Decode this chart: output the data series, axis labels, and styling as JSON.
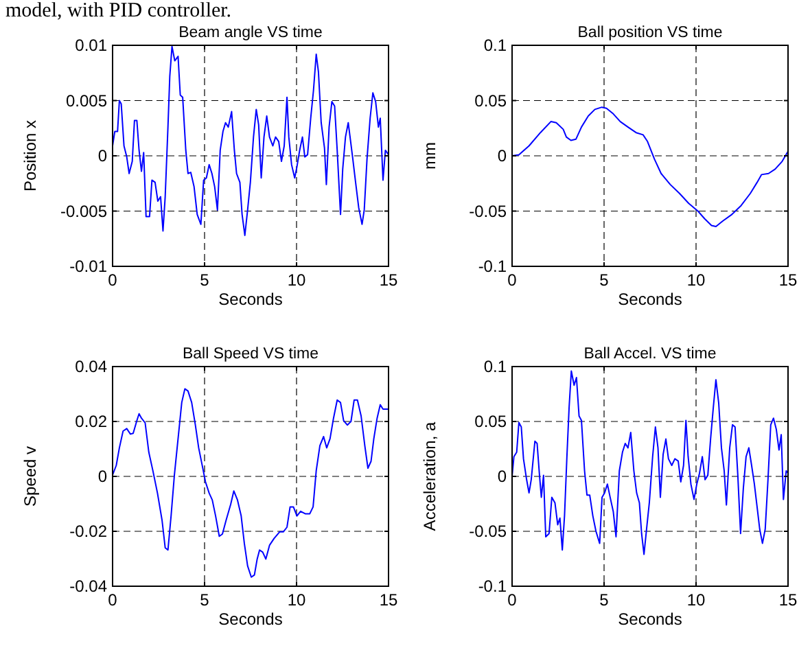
{
  "chart_data": [
    {
      "type": "line",
      "title": "Beam angle VS time",
      "xlabel": "Seconds",
      "ylabel": "Position x",
      "annotations": [
        "model, with PID controller."
      ],
      "xlim": [
        0,
        15
      ],
      "ylim": [
        -0.01,
        0.01
      ],
      "xticks": [
        0,
        5,
        10,
        15
      ],
      "yticks": [
        -0.01,
        -0.005,
        0,
        0.005,
        0.01
      ],
      "grid": true,
      "series": [
        {
          "color": "#0000ff",
          "x": [
            0,
            0.12,
            0.27,
            0.37,
            0.47,
            0.62,
            0.77,
            0.9,
            1.07,
            1.19,
            1.32,
            1.44,
            1.57,
            1.69,
            1.82,
            2.01,
            2.14,
            2.31,
            2.46,
            2.61,
            2.74,
            2.86,
            3.01,
            3.11,
            3.23,
            3.38,
            3.56,
            3.68,
            3.81,
            3.98,
            4.1,
            4.25,
            4.43,
            4.6,
            4.8,
            4.95,
            5.1,
            5.25,
            5.4,
            5.55,
            5.7,
            5.85,
            6.0,
            6.14,
            6.29,
            6.47,
            6.62,
            6.74,
            6.92,
            7.04,
            7.19,
            7.34,
            7.49,
            7.66,
            7.81,
            7.94,
            8.08,
            8.23,
            8.38,
            8.53,
            8.71,
            8.86,
            9.03,
            9.18,
            9.33,
            9.48,
            9.58,
            9.73,
            9.9,
            10.02,
            10.17,
            10.32,
            10.45,
            10.6,
            10.77,
            10.92,
            11.07,
            11.19,
            11.34,
            11.52,
            11.62,
            11.77,
            11.92,
            12.07,
            12.21,
            12.39,
            12.51,
            12.66,
            12.81,
            12.94,
            13.06,
            13.21,
            13.38,
            13.56,
            13.68,
            13.83,
            14.0,
            14.15,
            14.3,
            14.45,
            14.55,
            14.7,
            14.83,
            15
          ],
          "values": [
            0.0009,
            0.0022,
            0.0022,
            0.005,
            0.0047,
            0.0009,
            -0.0001,
            -0.0016,
            -0.0005,
            0.0032,
            0.0032,
            0.0005,
            -0.0014,
            0.0003,
            -0.0055,
            -0.0055,
            -0.0022,
            -0.0024,
            -0.0041,
            -0.0037,
            -0.0068,
            -0.0037,
            0.0026,
            0.0072,
            0.0099,
            0.0086,
            0.009,
            0.0055,
            0.0053,
            0.0005,
            -0.0016,
            -0.0015,
            -0.0028,
            -0.0053,
            -0.0062,
            -0.0022,
            -0.002,
            -0.0008,
            -0.0016,
            -0.0028,
            -0.0049,
            0.0005,
            0.0022,
            0.003,
            0.0026,
            0.004,
            0.0005,
            -0.0016,
            -0.0024,
            -0.0053,
            -0.0072,
            -0.0049,
            -0.0024,
            0.0017,
            0.0042,
            0.0028,
            -0.002,
            0.0017,
            0.0036,
            0.0017,
            0.0009,
            0.0017,
            0.0013,
            -0.0005,
            0.0009,
            0.0053,
            0.0017,
            -0.0008,
            -0.002,
            -0.001,
            0.0005,
            0.0017,
            -0.0001,
            0.0001,
            0.0034,
            0.0059,
            0.0092,
            0.0076,
            0.003,
            0.0007,
            -0.0026,
            0.0026,
            0.0049,
            0.0045,
            0.0005,
            -0.0053,
            -0.0012,
            0.0017,
            0.003,
            0.0013,
            -0.0003,
            -0.0024,
            -0.0047,
            -0.0062,
            -0.0049,
            -0.0003,
            0.0034,
            0.0057,
            0.0049,
            0.0026,
            0.0034,
            -0.0022,
            0.0005,
            0.0001
          ]
        }
      ]
    },
    {
      "type": "line",
      "title": "Ball position VS time",
      "xlabel": "Seconds",
      "ylabel": "mm",
      "xlim": [
        0,
        15
      ],
      "ylim": [
        -0.1,
        0.1
      ],
      "xticks": [
        0,
        5,
        10,
        15
      ],
      "yticks": [
        -0.1,
        -0.05,
        0,
        0.05,
        0.1
      ],
      "grid": true,
      "series": [
        {
          "color": "#0000ff",
          "x": [
            0,
            0.37,
            0.92,
            1.54,
            2.11,
            2.4,
            2.78,
            2.95,
            3.2,
            3.47,
            3.77,
            4.14,
            4.5,
            4.88,
            5.13,
            5.5,
            5.88,
            6.3,
            6.74,
            7.12,
            7.36,
            7.74,
            8.1,
            8.6,
            9.1,
            9.6,
            10.1,
            10.47,
            10.84,
            11.08,
            11.45,
            11.95,
            12.45,
            12.95,
            13.32,
            13.56,
            13.94,
            14.3,
            14.68,
            15
          ],
          "values": [
            0,
            0.001,
            0.009,
            0.021,
            0.031,
            0.03,
            0.024,
            0.017,
            0.014,
            0.015,
            0.026,
            0.036,
            0.042,
            0.044,
            0.043,
            0.038,
            0.031,
            0.026,
            0.021,
            0.019,
            0.013,
            -0.003,
            -0.016,
            -0.026,
            -0.034,
            -0.043,
            -0.05,
            -0.057,
            -0.063,
            -0.064,
            -0.059,
            -0.053,
            -0.045,
            -0.034,
            -0.024,
            -0.017,
            -0.016,
            -0.012,
            -0.005,
            0.004
          ]
        }
      ]
    },
    {
      "type": "line",
      "title": "Ball Speed VS time",
      "xlabel": "Seconds",
      "ylabel": "Speed v",
      "xlim": [
        0,
        15
      ],
      "ylim": [
        -0.04,
        0.04
      ],
      "xticks": [
        0,
        5,
        10,
        15
      ],
      "yticks": [
        -0.04,
        -0.02,
        0,
        0.02,
        0.04
      ],
      "grid": true,
      "series": [
        {
          "color": "#0000ff",
          "x": [
            0,
            0.2,
            0.37,
            0.57,
            0.77,
            0.97,
            1.12,
            1.32,
            1.44,
            1.57,
            1.77,
            1.97,
            2.19,
            2.44,
            2.69,
            2.86,
            3.01,
            3.18,
            3.36,
            3.56,
            3.76,
            3.93,
            4.1,
            4.3,
            4.5,
            4.68,
            4.93,
            5.05,
            5.25,
            5.42,
            5.6,
            5.8,
            5.97,
            6.17,
            6.42,
            6.59,
            6.79,
            6.99,
            7.16,
            7.34,
            7.54,
            7.71,
            7.86,
            7.99,
            8.16,
            8.33,
            8.53,
            8.78,
            9.08,
            9.28,
            9.48,
            9.65,
            9.83,
            10.02,
            10.22,
            10.47,
            10.72,
            10.9,
            11.07,
            11.27,
            11.47,
            11.64,
            11.82,
            12.01,
            12.21,
            12.39,
            12.56,
            12.76,
            12.96,
            13.13,
            13.31,
            13.51,
            13.71,
            13.88,
            14.05,
            14.2,
            14.38,
            14.55,
            14.7,
            14.88,
            15
          ],
          "values": [
            0.0005,
            0.004,
            0.0104,
            0.0165,
            0.0174,
            0.0154,
            0.0157,
            0.0203,
            0.0228,
            0.0212,
            0.0195,
            0.0088,
            0.0021,
            -0.0061,
            -0.016,
            -0.026,
            -0.0268,
            -0.0144,
            0.0005,
            0.0137,
            0.0269,
            0.0319,
            0.0311,
            0.0269,
            0.0187,
            0.0104,
            0.0021,
            -0.002,
            -0.0061,
            -0.0086,
            -0.0144,
            -0.0218,
            -0.021,
            -0.016,
            -0.0102,
            -0.0053,
            -0.0086,
            -0.0144,
            -0.0243,
            -0.0326,
            -0.0367,
            -0.0359,
            -0.0301,
            -0.0268,
            -0.0276,
            -0.0301,
            -0.0251,
            -0.0226,
            -0.0202,
            -0.0202,
            -0.0185,
            -0.0111,
            -0.0111,
            -0.0144,
            -0.0127,
            -0.0136,
            -0.0136,
            -0.0111,
            0.0021,
            0.0112,
            0.0145,
            0.0104,
            0.0137,
            0.0212,
            0.0278,
            0.0269,
            0.0203,
            0.0187,
            0.02,
            0.0278,
            0.0278,
            0.022,
            0.0112,
            0.003,
            0.0055,
            0.0137,
            0.0212,
            0.0261,
            0.0245,
            0.0245,
            0.0245
          ]
        }
      ]
    },
    {
      "type": "line",
      "title": "Ball Accel. VS time",
      "xlabel": "Seconds",
      "ylabel": "Acceleration, a",
      "xlim": [
        0,
        15
      ],
      "ylim": [
        -0.1,
        0.1
      ],
      "xticks": [
        0,
        5,
        10,
        15
      ],
      "yticks": [
        -0.1,
        -0.05,
        0,
        0.05,
        0.1
      ],
      "grid": true,
      "series": [
        {
          "color": "#0000ff",
          "x": [
            0,
            0.1,
            0.25,
            0.37,
            0.5,
            0.62,
            0.79,
            0.92,
            1.04,
            1.24,
            1.36,
            1.49,
            1.59,
            1.71,
            1.83,
            2.01,
            2.16,
            2.33,
            2.48,
            2.6,
            2.73,
            2.85,
            2.98,
            3.1,
            3.22,
            3.37,
            3.5,
            3.64,
            3.77,
            3.94,
            4.07,
            4.22,
            4.39,
            4.56,
            4.76,
            4.89,
            5.03,
            5.18,
            5.33,
            5.5,
            5.65,
            5.83,
            6.0,
            6.15,
            6.3,
            6.45,
            6.62,
            6.77,
            6.92,
            7.04,
            7.17,
            7.31,
            7.46,
            7.64,
            7.79,
            7.93,
            8.06,
            8.21,
            8.36,
            8.5,
            8.68,
            8.85,
            9.03,
            9.17,
            9.32,
            9.45,
            9.57,
            9.72,
            9.89,
            10.04,
            10.19,
            10.34,
            10.49,
            10.64,
            10.79,
            10.94,
            11.08,
            11.23,
            11.38,
            11.53,
            11.65,
            11.83,
            11.98,
            12.12,
            12.27,
            12.42,
            12.57,
            12.72,
            12.87,
            13.02,
            13.17,
            13.32,
            13.46,
            13.61,
            13.76,
            13.91,
            14.06,
            14.21,
            14.36,
            14.51,
            14.63,
            14.75,
            14.9,
            15
          ],
          "values": [
            0,
            0.018,
            0.022,
            0.049,
            0.045,
            0.016,
            -0.003,
            -0.015,
            -0.003,
            0.032,
            0.03,
            0.001,
            -0.019,
            0.001,
            -0.055,
            -0.052,
            -0.019,
            -0.024,
            -0.044,
            -0.038,
            -0.067,
            -0.036,
            0.018,
            0.063,
            0.096,
            0.083,
            0.09,
            0.055,
            0.051,
            0.005,
            -0.017,
            -0.017,
            -0.036,
            -0.05,
            -0.061,
            -0.019,
            -0.015,
            -0.007,
            -0.019,
            -0.032,
            -0.055,
            0.005,
            0.022,
            0.03,
            0.026,
            0.04,
            0.005,
            -0.015,
            -0.024,
            -0.052,
            -0.071,
            -0.048,
            -0.024,
            0.018,
            0.045,
            0.026,
            -0.019,
            0.02,
            0.034,
            0.016,
            0.01,
            0.016,
            0.014,
            -0.005,
            0.01,
            0.051,
            0.018,
            -0.007,
            -0.021,
            -0.007,
            0.003,
            0.018,
            -0.003,
            0.001,
            0.034,
            0.063,
            0.088,
            0.067,
            0.026,
            0.005,
            -0.026,
            0.026,
            0.047,
            0.045,
            0.001,
            -0.052,
            -0.011,
            0.018,
            0.026,
            0.01,
            -0.007,
            -0.028,
            -0.048,
            -0.061,
            -0.048,
            -0.003,
            0.047,
            0.053,
            0.043,
            0.024,
            0.038,
            -0.021,
            0.005,
            0.003
          ]
        }
      ]
    }
  ]
}
